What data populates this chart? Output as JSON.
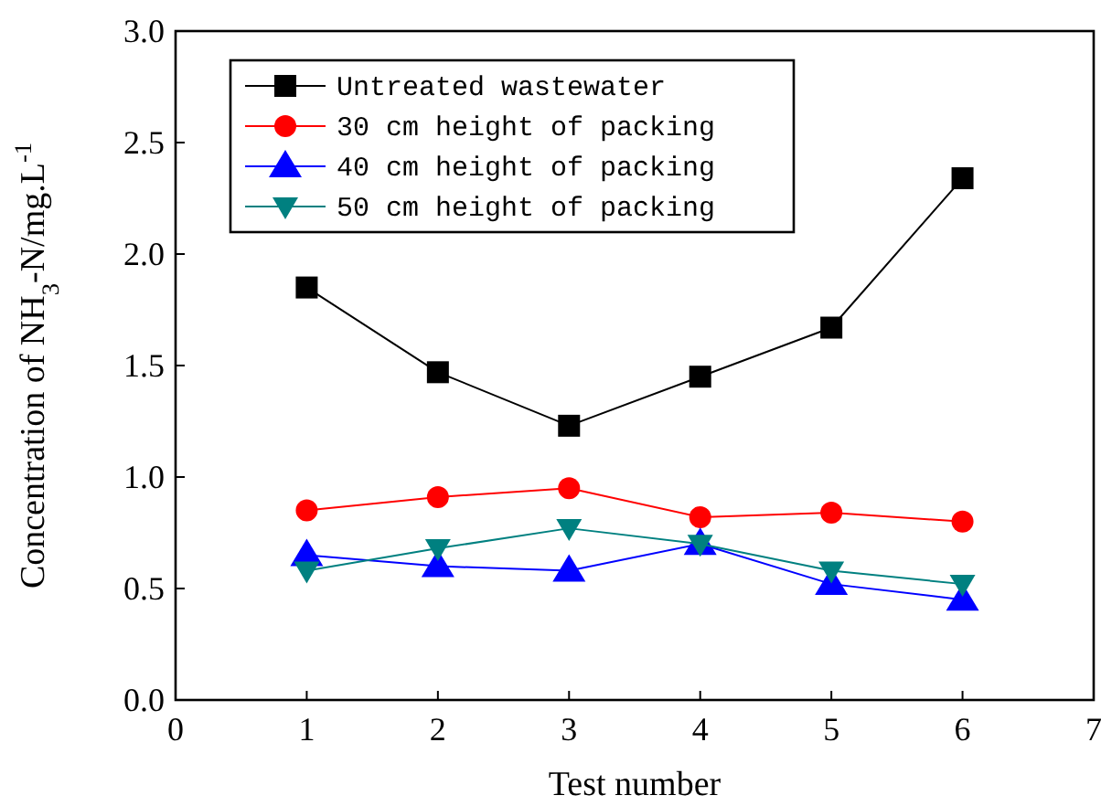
{
  "chart_data": {
    "type": "line",
    "xlabel": "Test number",
    "ylabel": "Concentration of NH$_{3}$-N/mg.L$^{-1}$",
    "x": [
      1,
      2,
      3,
      4,
      5,
      6
    ],
    "series": [
      {
        "name": "Untreated wastewater",
        "color": "#000000",
        "marker": "square",
        "values": [
          1.85,
          1.47,
          1.23,
          1.45,
          1.67,
          2.34
        ]
      },
      {
        "name": "30 cm height of packing",
        "color": "#ff0000",
        "marker": "circle",
        "values": [
          0.85,
          0.91,
          0.95,
          0.82,
          0.84,
          0.8
        ]
      },
      {
        "name": "40 cm height of packing",
        "color": "#0000ff",
        "marker": "triangle",
        "values": [
          0.65,
          0.6,
          0.58,
          0.7,
          0.52,
          0.45
        ]
      },
      {
        "name": "50 cm height of packing",
        "color": "#008080",
        "marker": "triangle-down",
        "values": [
          0.58,
          0.68,
          0.77,
          0.7,
          0.58,
          0.52
        ]
      }
    ],
    "xlim": [
      0,
      7
    ],
    "xticks": [
      0,
      1,
      2,
      3,
      4,
      5,
      6,
      7
    ],
    "ylim": [
      0,
      3
    ],
    "yticks": [
      {
        "value": 0,
        "label": "0.0"
      },
      {
        "value": 0.5,
        "label": "0.5"
      },
      {
        "value": 1,
        "label": "1.0"
      },
      {
        "value": 1.5,
        "label": "1.5"
      },
      {
        "value": 2,
        "label": "2.0"
      },
      {
        "value": 2.5,
        "label": "2.5"
      },
      {
        "value": 3,
        "label": "3.0"
      }
    ],
    "grid": false,
    "legend": "top left",
    "line_style": "solid"
  }
}
